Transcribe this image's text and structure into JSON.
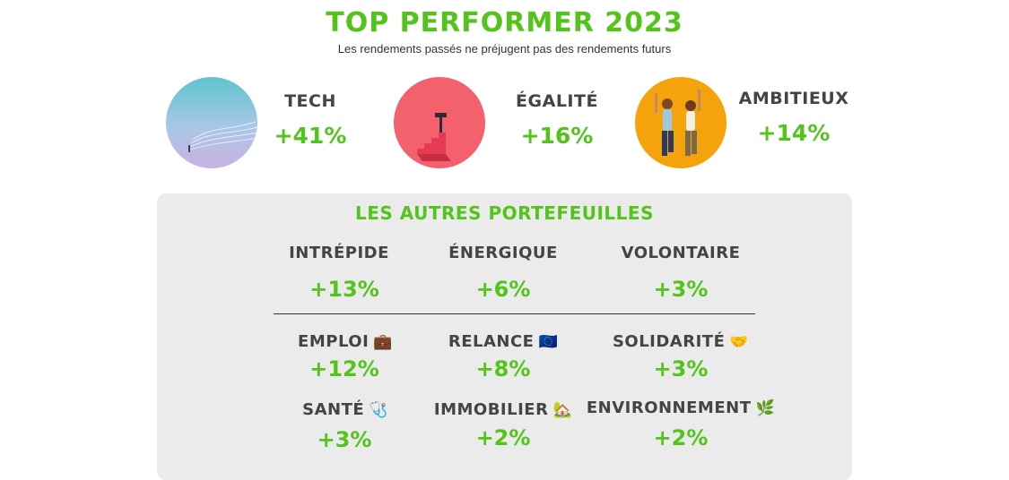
{
  "header": {
    "title": "TOP PERFORMER 2023",
    "subtitle": "Les rendements passés ne préjugent pas des rendements futurs"
  },
  "top_performers": [
    {
      "name": "TECH",
      "pct": "+41%",
      "image": "tech-landscape-image"
    },
    {
      "name": "ÉGALITÉ",
      "pct": "+16%",
      "image": "summit-stairs-image"
    },
    {
      "name": "AMBITIEUX",
      "pct": "+14%",
      "image": "jumping-couple-image"
    }
  ],
  "others": {
    "title": "LES AUTRES PORTEFEUILLES",
    "row1": [
      {
        "name": "INTRÉPIDE",
        "pct": "+13%"
      },
      {
        "name": "ÉNERGIQUE",
        "pct": "+6%"
      },
      {
        "name": "VOLONTAIRE",
        "pct": "+3%"
      }
    ],
    "row2": [
      {
        "name": "EMPLOI",
        "emoji": "💼",
        "icon": "briefcase-icon",
        "pct": "+12%"
      },
      {
        "name": "RELANCE",
        "emoji": "🇪🇺",
        "icon": "eu-flag-icon",
        "pct": "+8%"
      },
      {
        "name": "SOLIDARITÉ",
        "emoji": "🤝",
        "icon": "handshake-icon",
        "pct": "+3%"
      }
    ],
    "row3": [
      {
        "name": "SANTÉ",
        "emoji": "🩺",
        "icon": "stethoscope-icon",
        "pct": "+3%"
      },
      {
        "name": "IMMOBILIER",
        "emoji": "🏡",
        "icon": "house-icon",
        "pct": "+2%"
      },
      {
        "name": "ENVIRONNEMENT",
        "emoji": "🌿",
        "icon": "leaf-icon",
        "pct": "+2%"
      }
    ]
  },
  "colors": {
    "accent": "#52c41a",
    "text": "#444444",
    "panel": "#ebebeb"
  }
}
